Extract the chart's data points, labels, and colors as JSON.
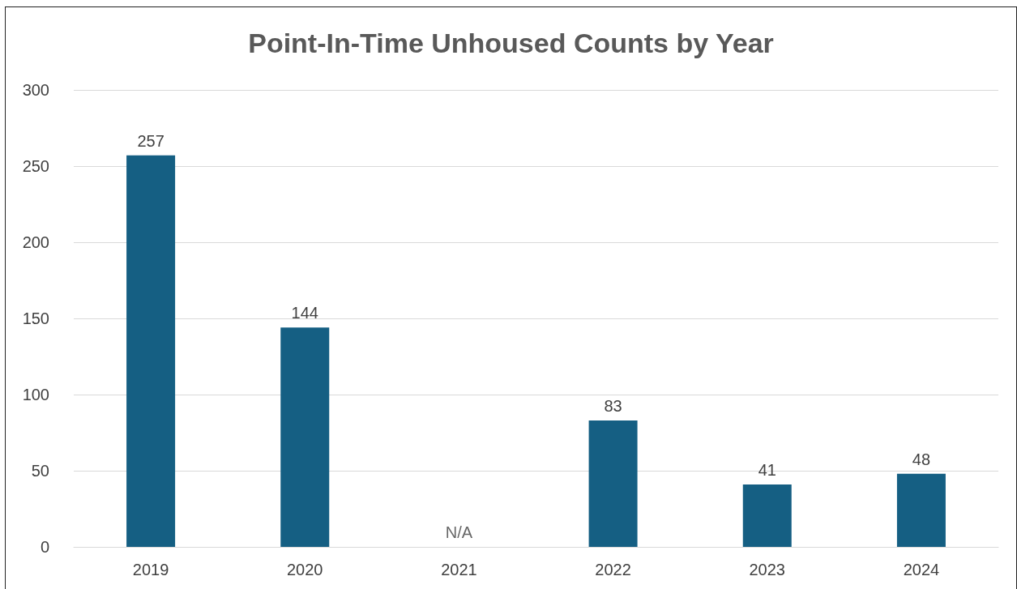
{
  "chart_data": {
    "type": "bar",
    "title": "Point-In-Time Unhoused Counts by Year",
    "categories": [
      "2019",
      "2020",
      "2021",
      "2022",
      "2023",
      "2024"
    ],
    "values": [
      257,
      144,
      null,
      83,
      41,
      48
    ],
    "value_labels": [
      "257",
      "144",
      "N/A",
      "83",
      "41",
      "48"
    ],
    "color": "#155f83",
    "ylim": [
      0,
      300
    ],
    "yticks": [
      0,
      50,
      100,
      150,
      200,
      250,
      300
    ],
    "grid": "y"
  }
}
